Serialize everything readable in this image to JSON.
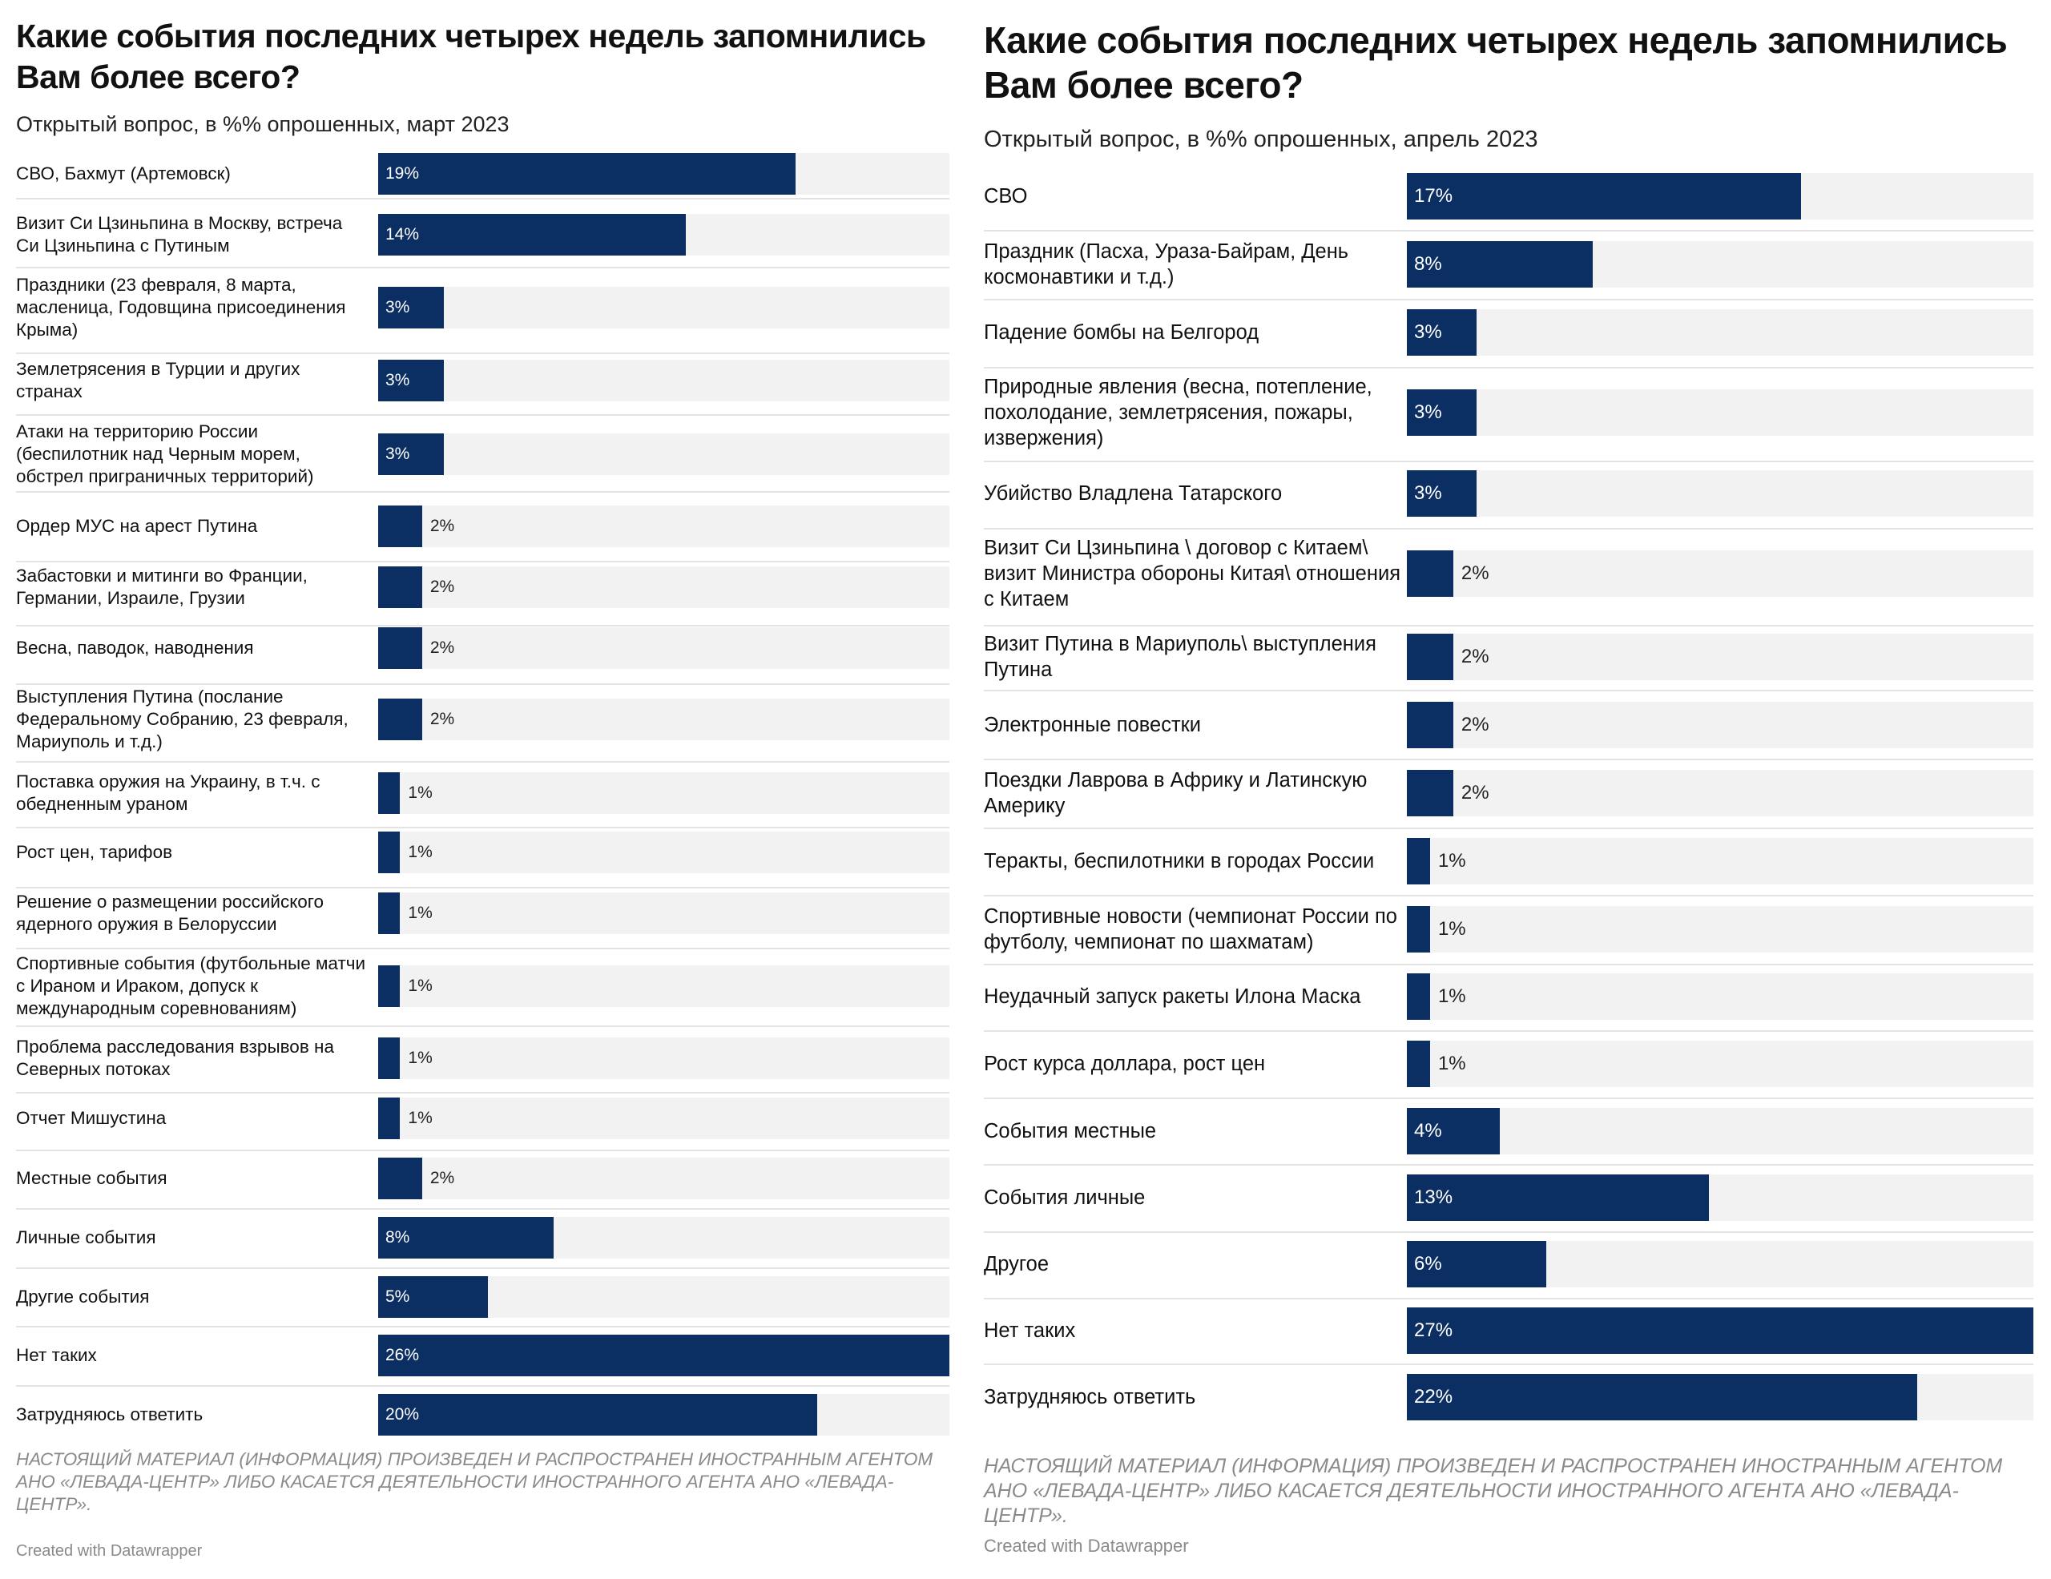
{
  "chart_data": [
    {
      "type": "bar",
      "orientation": "horizontal",
      "title": "Какие события последних четырех недель запомнились Вам более всего?",
      "subtitle": "Открытый вопрос, в %% опрошенных, март 2023",
      "categories": [
        "СВО, Бахмут (Артемовск)",
        "Визит Си Цзиньпина в Москву, встреча Си Цзиньпина с Путиным",
        "Праздники (23 февраля, 8 марта, масленица, Годовщина присоединения Крыма)",
        "Землетрясения в Турции и других странах",
        "Атаки на территорию России (беспилотник над Черным морем, обстрел приграничных территорий)",
        "Ордер МУС на арест Путина",
        "Забастовки и митинги во Франции, Германии, Израиле, Грузии",
        "Весна, паводок, наводнения",
        "Выступления Путина (послание Федеральному Собранию, 23 февраля, Мариуполь и т.д.)",
        "Поставка оружия на Украину, в т.ч. с обедненным ураном",
        "Рост цен, тарифов",
        "Решение о размещении российского ядерного оружия в Белоруссии",
        "Спортивные события (футбольные матчи с Ираном и Ираком, допуск к международным соревнованиям)",
        "Проблема расследования взрывов на Северных потоках",
        "Отчет Мишустина",
        "Местные события",
        "Личные события",
        "Другие события",
        "Нет таких",
        "Затрудняюсь ответить"
      ],
      "values": [
        19,
        14,
        3,
        3,
        3,
        2,
        2,
        2,
        2,
        1,
        1,
        1,
        1,
        1,
        1,
        2,
        8,
        5,
        26,
        20
      ],
      "value_labels": [
        "19%",
        "14%",
        "3%",
        "3%",
        "3%",
        "2%",
        "2%",
        "2%",
        "2%",
        "1%",
        "1%",
        "1%",
        "1%",
        "1%",
        "1%",
        "2%",
        "8%",
        "5%",
        "26%",
        "20%"
      ],
      "xlim": [
        0,
        26
      ],
      "notes": "НАСТОЯЩИЙ МАТЕРИАЛ (ИНФОРМАЦИЯ) ПРОИЗВЕДЕН И РАСПРОСТРАНЕН ИНОСТРАННЫМ АГЕНТОМ АНО «ЛЕВАДА-ЦЕНТР» ЛИБО КАСАЕТСЯ ДЕЯТЕЛЬНОСТИ ИНОСТРАННОГО АГЕНТА АНО «ЛЕВАДА-ЦЕНТР».",
      "credit": "Created with Datawrapper"
    },
    {
      "type": "bar",
      "orientation": "horizontal",
      "title": "Какие события последних четырех недель запомнились Вам более всего?",
      "subtitle": "Открытый вопрос, в %% опрошенных, апрель 2023",
      "categories": [
        "СВО",
        "Праздник (Пасха, Ураза-Байрам, День космонавтики и т.д.)",
        "Падение бомбы на Белгород",
        "Природные явления (весна, потепление, похолодание, землетрясения, пожары, извержения)",
        "Убийство Владлена Татарского",
        "Визит Си Цзиньпина \\ договор с Китаем\\ визит Министра обороны Китая\\ отношения с Китаем",
        "Визит Путина в Мариуполь\\ выступления Путина",
        "Электронные повестки",
        "Поездки Лаврова в Африку и Латинскую Америку",
        "Теракты, беспилотники в городах России",
        "Спортивные новости (чемпионат России по футболу, чемпионат по шахматам)",
        "Неудачный запуск ракеты Илона Маска",
        "Рост курса доллара, рост цен",
        "События местные",
        "События личные",
        "Другое",
        "Нет таких",
        "Затрудняюсь ответить"
      ],
      "values": [
        17,
        8,
        3,
        3,
        3,
        2,
        2,
        2,
        2,
        1,
        1,
        1,
        1,
        4,
        13,
        6,
        27,
        22
      ],
      "value_labels": [
        "17%",
        "8%",
        "3%",
        "3%",
        "3%",
        "2%",
        "2%",
        "2%",
        "2%",
        "1%",
        "1%",
        "1%",
        "1%",
        "4%",
        "13%",
        "6%",
        "27%",
        "22%"
      ],
      "xlim": [
        0,
        27
      ],
      "notes": "НАСТОЯЩИЙ МАТЕРИАЛ (ИНФОРМАЦИЯ) ПРОИЗВЕДЕН И РАСПРОСТРАНЕН ИНОСТРАННЫМ АГЕНТОМ АНО «ЛЕВАДА-ЦЕНТР» ЛИБО КАСАЕТСЯ ДЕЯТЕЛЬНОСТИ ИНОСТРАННОГО АГЕНТА АНО «ЛЕВАДА-ЦЕНТР».",
      "credit": "Created with Datawrapper"
    }
  ],
  "colors": {
    "bar": "#0b2f63",
    "track": "#f2f2f2",
    "separator": "#e3e3e3",
    "notes": "#8a8a8a"
  }
}
